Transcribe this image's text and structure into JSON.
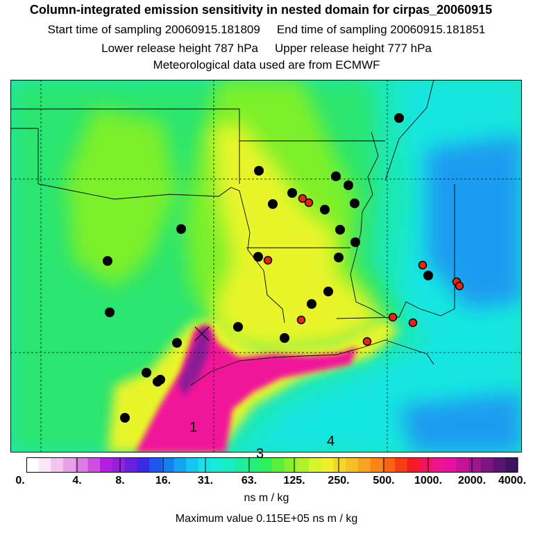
{
  "header": {
    "title": "Column-integrated emission sensitivity in nested domain for cirpas_20060915",
    "start_label": "Start time of sampling 20060915.181809",
    "end_label": "End time of sampling 20060915.181851",
    "lower_label": "Lower release height  787 hPa",
    "upper_label": "Upper release height  777 hPa",
    "met_label": "Meteorological data used are from ECMWF"
  },
  "map": {
    "contour_labels": [
      "1",
      "3",
      "4"
    ],
    "colors": {
      "background": "#1ee8b8",
      "land_fill": "#2be56f",
      "high": "#7cf02a",
      "yellow": "#e8f52a",
      "ocean_cyan": "#19e6e1",
      "ocean_blue": "#1e9cf0",
      "magenta": "#f0189a",
      "purple": "#8a1a96",
      "station_black": "#000000",
      "station_red": "#e8250f"
    }
  },
  "colorbar": {
    "tick_labels": [
      "0.",
      "4.",
      "8.",
      "16.",
      "31.",
      "63.",
      "125.",
      "250.",
      "500.",
      "1000.",
      "2000.",
      "4000."
    ],
    "colors": [
      "#ffffff",
      "#fbe6f8",
      "#f4c4f0",
      "#e9a0ea",
      "#dd7ce6",
      "#cd4fe2",
      "#b21ee2",
      "#9420e0",
      "#6a20e0",
      "#3a2ae8",
      "#1c56ec",
      "#167ff0",
      "#15a4f2",
      "#16c6f2",
      "#18e1ea",
      "#18ecd6",
      "#18efc0",
      "#1cf09e",
      "#22f07a",
      "#2ef05a",
      "#58f03a",
      "#86f02c",
      "#b0f22a",
      "#d6f42a",
      "#f2f02a",
      "#f4d828",
      "#f6c024",
      "#f8a41e",
      "#fa8618",
      "#fb6414",
      "#fa3c12",
      "#f41c22",
      "#f01460",
      "#f0148c",
      "#e810a4",
      "#c41497",
      "#a0158d",
      "#7c1582",
      "#5a1574",
      "#3c1460"
    ],
    "units": "ns m / kg"
  },
  "footer": {
    "max_value": "Maximum value  0.115E+05 ns m / kg"
  }
}
